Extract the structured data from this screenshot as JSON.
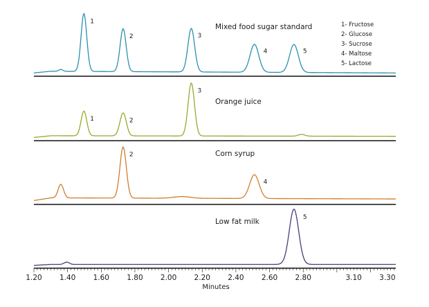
{
  "chart_data": {
    "type": "line",
    "xlabel": "Minutes",
    "xlim": [
      1.2,
      3.35
    ],
    "x_ticks": [
      "1.20",
      "1.40",
      "1.60",
      "1.80",
      "2.00",
      "2.20",
      "2.40",
      "2.60",
      "2.80",
      "3.10",
      "3.30"
    ],
    "x_tick_values": [
      1.2,
      1.4,
      1.6,
      1.8,
      2.0,
      2.2,
      2.4,
      2.6,
      2.8,
      3.1,
      3.3
    ],
    "legend": [
      "1- Fructose",
      "2- Glucose",
      "3- Sucrose",
      "4- Maltose",
      "5- Lactose"
    ],
    "panels": [
      {
        "title": "Mixed food sugar standard",
        "color": "#2a8fb0",
        "baseline": 0.05,
        "drift": -0.03,
        "peaks": [
          {
            "x": 1.36,
            "h": 0.03,
            "w": 0.012
          },
          {
            "x": 1.497,
            "h": 0.97,
            "w": 0.017,
            "label": "1"
          },
          {
            "x": 1.73,
            "h": 0.72,
            "w": 0.018,
            "label": "2"
          },
          {
            "x": 2.135,
            "h": 0.73,
            "w": 0.02,
            "label": "3"
          },
          {
            "x": 2.51,
            "h": 0.47,
            "w": 0.026,
            "label": "4"
          },
          {
            "x": 2.745,
            "h": 0.47,
            "w": 0.026,
            "label": "5"
          }
        ]
      },
      {
        "title": "Orange juice",
        "color": "#98a82a",
        "baseline": 0.05,
        "drift": -0.01,
        "peaks": [
          {
            "x": 1.497,
            "h": 0.43,
            "w": 0.017,
            "label": "1"
          },
          {
            "x": 1.73,
            "h": 0.4,
            "w": 0.019,
            "label": "2"
          },
          {
            "x": 2.135,
            "h": 0.92,
            "w": 0.019,
            "label": "3"
          },
          {
            "x": 2.79,
            "h": 0.03,
            "w": 0.02
          }
        ]
      },
      {
        "title": "Corn syrup",
        "color": "#d07d2c",
        "baseline": 0.08,
        "drift": -0.02,
        "peaks": [
          {
            "x": 1.36,
            "h": 0.24,
            "w": 0.016
          },
          {
            "x": 1.73,
            "h": 0.9,
            "w": 0.019,
            "label": "2"
          },
          {
            "x": 2.08,
            "h": 0.03,
            "w": 0.05
          },
          {
            "x": 2.51,
            "h": 0.42,
            "w": 0.028,
            "label": "4"
          }
        ]
      },
      {
        "title": "Low fat milk",
        "color": "#4a3a7e",
        "baseline": 0.03,
        "drift": 0.0,
        "peaks": [
          {
            "x": 1.395,
            "h": 0.04,
            "w": 0.015
          },
          {
            "x": 2.745,
            "h": 0.96,
            "w": 0.028,
            "label": "5"
          }
        ]
      }
    ]
  }
}
